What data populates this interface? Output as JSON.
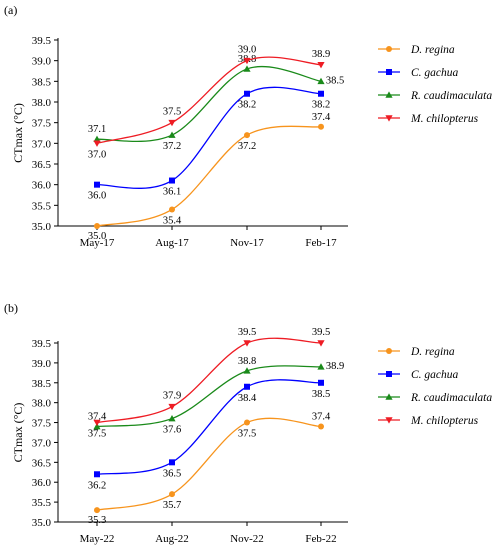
{
  "colors": {
    "D. regina": "#f7941d",
    "C. gachua": "#0000ff",
    "R. caudimaculata": "#1a8a1a",
    "M. chilopterus": "#ee1c24"
  },
  "chart_data": [
    {
      "type": "line",
      "panel": "(a)",
      "title": "",
      "xlabel": "",
      "ylabel": "CTmax (°C)",
      "categories": [
        "May-17",
        "Aug-17",
        "Nov-17",
        "Feb-17"
      ],
      "ylim": [
        35.0,
        39.5
      ],
      "yticks": [
        "35.0",
        "35.5",
        "36.0",
        "36.5",
        "37.0",
        "37.5",
        "38.0",
        "38.5",
        "39.0",
        "39.5"
      ],
      "grid": false,
      "legend": "right",
      "series": [
        {
          "name": "D. regina",
          "marker": "circle",
          "values": [
            35.0,
            35.4,
            37.2,
            37.4
          ],
          "labels": [
            "35.0",
            "35.4",
            "37.2",
            "37.4"
          ]
        },
        {
          "name": "C. gachua",
          "marker": "square",
          "values": [
            36.0,
            36.1,
            38.2,
            38.2
          ],
          "labels": [
            "36.0",
            "36.1",
            "38.2",
            "38.2"
          ]
        },
        {
          "name": "R. caudimaculata",
          "marker": "triangle-up",
          "values": [
            37.1,
            37.2,
            38.8,
            38.5
          ],
          "labels": [
            "37.1",
            "37.2",
            "38.8",
            "38.5"
          ]
        },
        {
          "name": "M. chilopterus",
          "marker": "triangle-down",
          "values": [
            37.0,
            37.5,
            39.0,
            38.9
          ],
          "labels": [
            "37.0",
            "37.5",
            "39.0",
            "38.9"
          ]
        }
      ]
    },
    {
      "type": "line",
      "panel": "(b)",
      "title": "",
      "xlabel": "",
      "ylabel": "CTmax (°C)",
      "categories": [
        "May-22",
        "Aug-22",
        "Nov-22",
        "Feb-22"
      ],
      "ylim": [
        35.0,
        39.5
      ],
      "yticks": [
        "35.0",
        "35.5",
        "36.0",
        "36.5",
        "37.0",
        "37.5",
        "38.0",
        "38.5",
        "39.0",
        "39.5"
      ],
      "grid": false,
      "legend": "right",
      "series": [
        {
          "name": "D. regina",
          "marker": "circle",
          "values": [
            35.3,
            35.7,
            37.5,
            37.4
          ],
          "labels": [
            "35.3",
            "35.7",
            "37.5",
            "37.4"
          ]
        },
        {
          "name": "C. gachua",
          "marker": "square",
          "values": [
            36.2,
            36.5,
            38.4,
            38.5
          ],
          "labels": [
            "36.2",
            "36.5",
            "38.4",
            "38.5"
          ]
        },
        {
          "name": "R. caudimaculata",
          "marker": "triangle-up",
          "values": [
            37.4,
            37.6,
            38.8,
            38.9
          ],
          "labels": [
            "37.4",
            "37.6",
            "38.8",
            "38.9"
          ]
        },
        {
          "name": "M. chilopterus",
          "marker": "triangle-down",
          "values": [
            37.5,
            37.9,
            39.5,
            39.5
          ],
          "labels": [
            "37.5",
            "37.9",
            "39.5",
            "39.5"
          ]
        }
      ]
    }
  ]
}
